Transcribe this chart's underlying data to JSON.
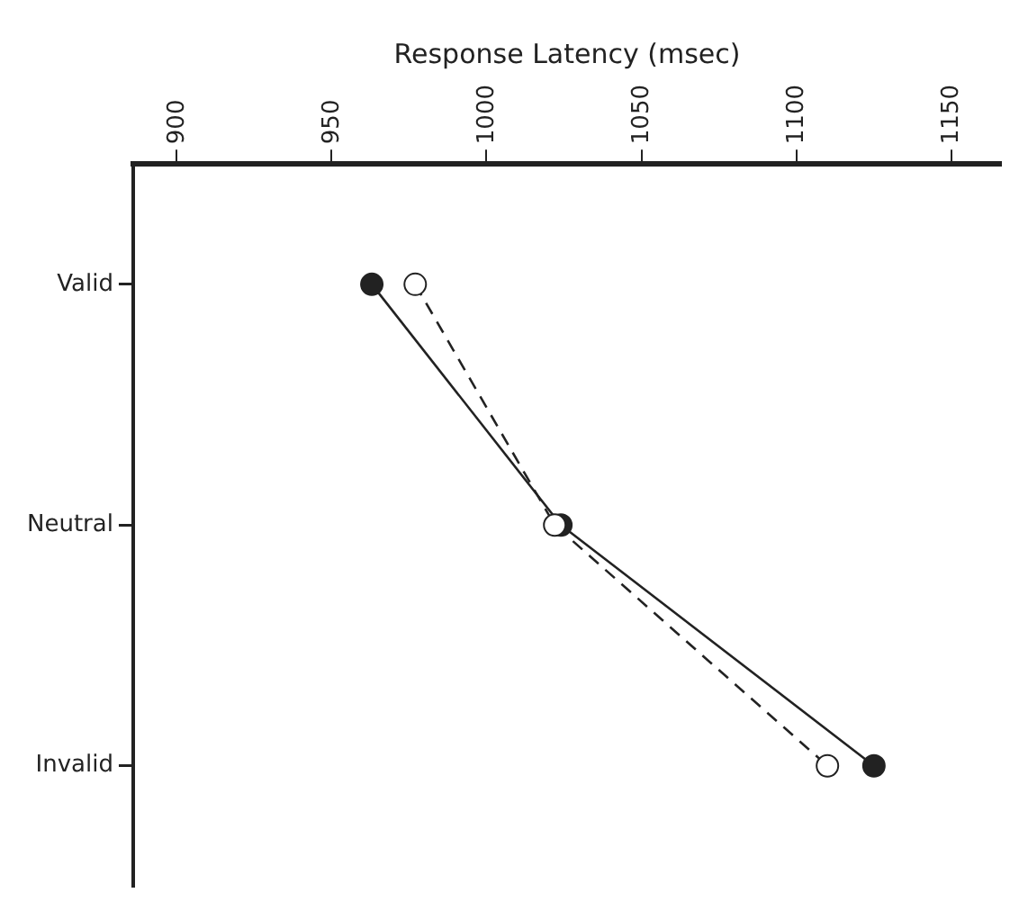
{
  "chart_data": {
    "type": "line",
    "orientation": "horizontal",
    "xlabel": "Response Latency (msec)",
    "categories": [
      "Valid",
      "Neutral",
      "Invalid"
    ],
    "series": [
      {
        "color": "#222222",
        "values": [
          963,
          1024,
          1125
        ],
        "line_style": "solid",
        "marker": "circle"
      },
      {
        "color": "#222222",
        "values": [
          977,
          1022,
          1110
        ],
        "line_style": "dashed",
        "marker": "circle"
      }
    ],
    "xlim": [
      886,
      1166
    ],
    "xticks": [
      900,
      950,
      1000,
      1050,
      1100,
      1150
    ],
    "grid": false,
    "legend": false
  }
}
